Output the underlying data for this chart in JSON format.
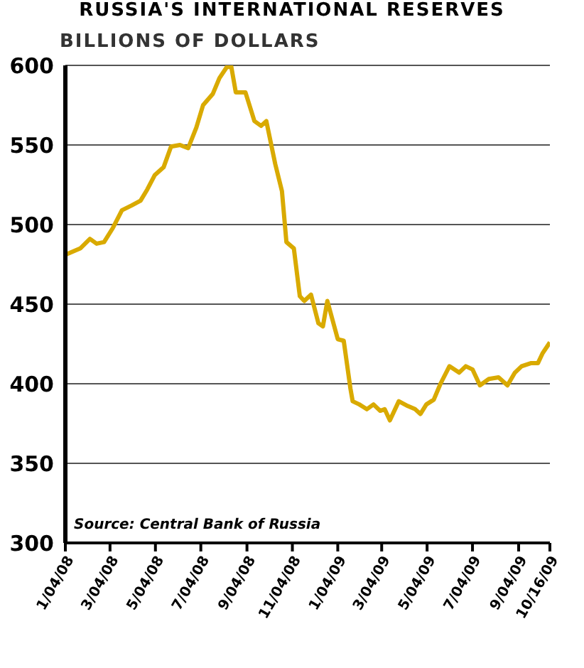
{
  "chart_data": {
    "type": "line",
    "title": "RUSSIA'S INTERNATIONAL RESERVES",
    "ylabel": "BILLIONS OF DOLLARS",
    "annotations": [
      "Source:  Central Bank of Russia"
    ],
    "x": [
      "2008-01-04",
      "2008-01-24",
      "2008-02-06",
      "2008-02-15",
      "2008-02-25",
      "2008-03-08",
      "2008-03-20",
      "2008-04-02",
      "2008-04-14",
      "2008-04-23",
      "2008-05-03",
      "2008-05-15",
      "2008-05-25",
      "2008-06-06",
      "2008-06-17",
      "2008-06-28",
      "2008-07-07",
      "2008-07-20",
      "2008-07-29",
      "2008-08-08",
      "2008-08-14",
      "2008-08-20",
      "2008-09-02",
      "2008-09-14",
      "2008-09-23",
      "2008-09-30",
      "2008-10-12",
      "2008-10-21",
      "2008-10-27",
      "2008-11-06",
      "2008-11-14",
      "2008-11-20",
      "2008-11-29",
      "2008-12-09",
      "2008-12-15",
      "2008-12-21",
      "2009-01-04",
      "2009-01-12",
      "2009-01-21",
      "2009-01-24",
      "2009-02-02",
      "2009-02-12",
      "2009-02-21",
      "2009-03-02",
      "2009-03-08",
      "2009-03-15",
      "2009-03-27",
      "2009-04-08",
      "2009-04-18",
      "2009-04-25",
      "2009-05-03",
      "2009-05-13",
      "2009-05-22",
      "2009-06-03",
      "2009-06-16",
      "2009-06-25",
      "2009-07-04",
      "2009-07-14",
      "2009-07-26",
      "2009-08-08",
      "2009-08-20",
      "2009-08-30",
      "2009-09-08",
      "2009-09-21",
      "2009-09-30",
      "2009-10-06",
      "2009-10-16"
    ],
    "series": [
      {
        "color": "#d9aa00",
        "values": [
          481,
          485,
          491,
          488,
          489,
          498,
          509,
          512,
          515,
          522,
          531,
          536,
          549,
          550,
          548,
          561,
          575,
          582,
          592,
          599,
          599,
          583,
          583,
          565,
          562,
          565,
          538,
          521,
          489,
          485,
          455,
          452,
          456,
          438,
          436,
          452,
          428,
          427,
          397,
          389,
          387,
          384,
          387,
          383,
          384,
          377,
          389,
          386,
          384,
          381,
          387,
          390,
          400,
          411,
          407,
          411,
          409,
          399,
          403,
          404,
          399,
          407,
          411,
          413,
          413,
          419,
          426
        ]
      }
    ],
    "xlim": [
      "2008-01-04",
      "2009-10-16"
    ],
    "xticks": [
      {
        "value": "2008-01-04",
        "label": "1/04/08"
      },
      {
        "value": "2008-03-04",
        "label": "3/04/08"
      },
      {
        "value": "2008-05-04",
        "label": "5/04/08"
      },
      {
        "value": "2008-07-04",
        "label": "7/04/08"
      },
      {
        "value": "2008-09-04",
        "label": "9/04/08"
      },
      {
        "value": "2008-11-04",
        "label": "11/04/08"
      },
      {
        "value": "2009-01-04",
        "label": "1/04/09"
      },
      {
        "value": "2009-03-04",
        "label": "3/04/09"
      },
      {
        "value": "2009-05-04",
        "label": "5/04/09"
      },
      {
        "value": "2009-07-04",
        "label": "7/04/09"
      },
      {
        "value": "2009-09-04",
        "label": "9/04/09"
      },
      {
        "value": "2009-10-16",
        "label": "10/16/09"
      }
    ],
    "ylim": [
      300,
      600
    ],
    "yticks": [
      300,
      350,
      400,
      450,
      500,
      550,
      600
    ],
    "grid": "y",
    "legend": false,
    "marker": "none",
    "line_style": "solid"
  }
}
